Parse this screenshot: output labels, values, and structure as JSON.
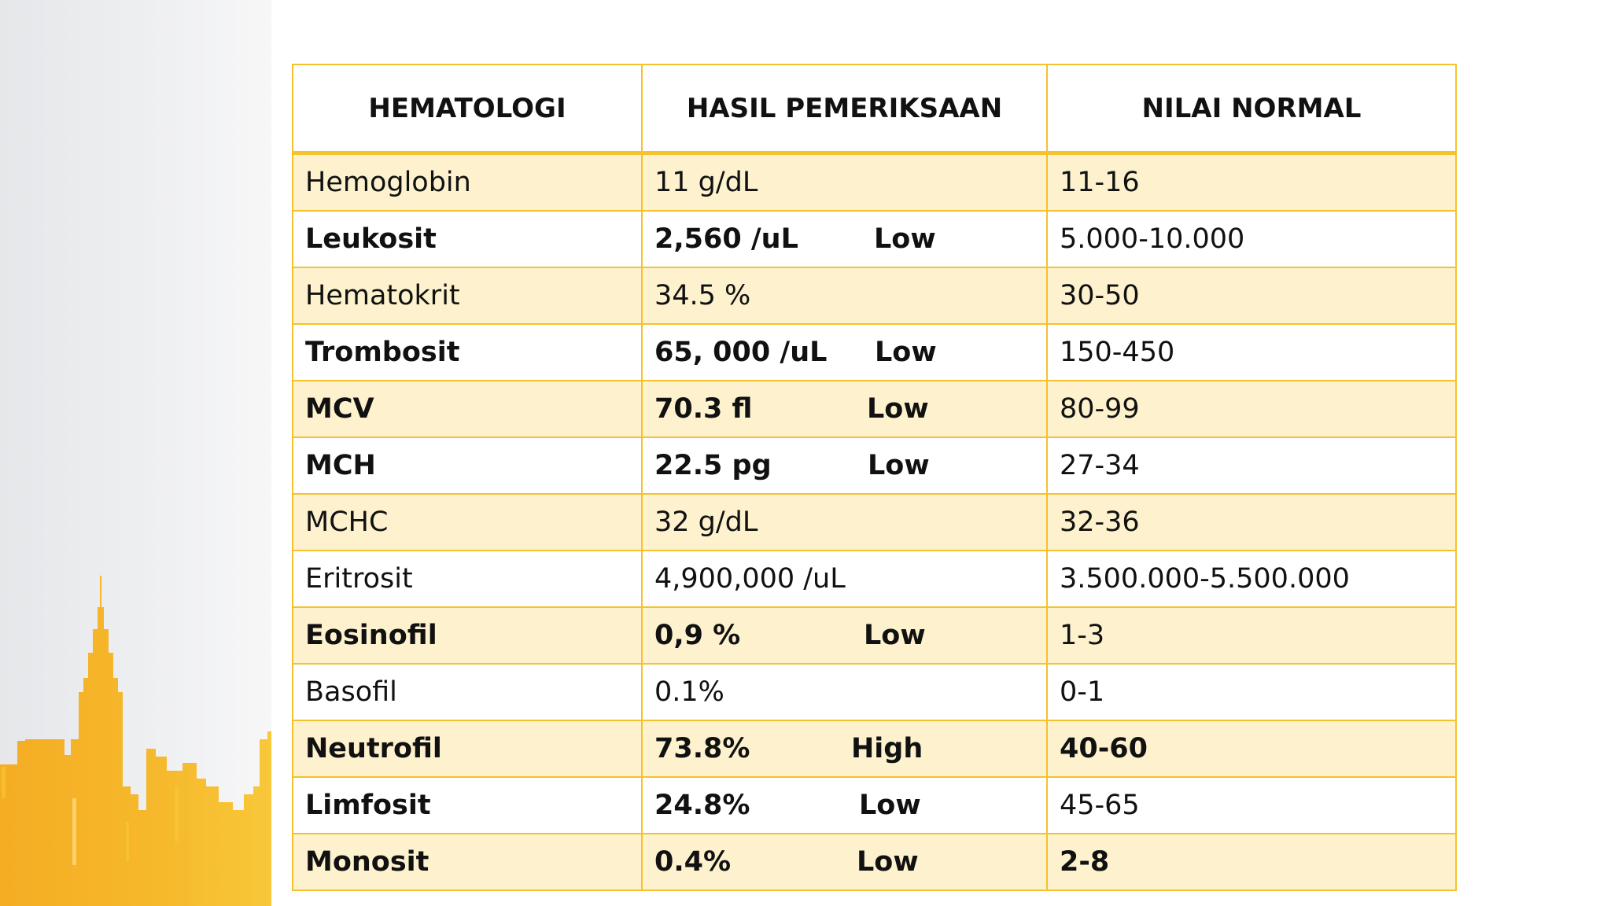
{
  "table": {
    "headers": [
      "HEMATOLOGI",
      "HASIL PEMERIKSAAN",
      "NILAI NORMAL"
    ],
    "rows": [
      {
        "test": "Hemoglobin",
        "result": "11 g/dL",
        "flag": "",
        "normal": "11-16",
        "bold": false,
        "normal_bold": false
      },
      {
        "test": "Leukosit",
        "result": "2,560 /uL",
        "flag": "Low",
        "normal": "5.000-10.000",
        "bold": true,
        "normal_bold": false
      },
      {
        "test": "Hematokrit",
        "result": "34.5 %",
        "flag": "",
        "normal": "30-50",
        "bold": false,
        "normal_bold": false
      },
      {
        "test": "Trombosit",
        "result": "65, 000 /uL",
        "flag": "Low",
        "normal": "150-450",
        "bold": true,
        "normal_bold": false
      },
      {
        "test": "MCV",
        "result": "70.3 fl",
        "flag": "Low",
        "normal": "80-99",
        "bold": true,
        "normal_bold": false
      },
      {
        "test": "MCH",
        "result": "22.5 pg",
        "flag": "Low",
        "normal": "27-34",
        "bold": true,
        "normal_bold": false
      },
      {
        "test": "MCHC",
        "result": "32 g/dL",
        "flag": "",
        "normal": "32-36",
        "bold": false,
        "normal_bold": false
      },
      {
        "test": "Eritrosit",
        "result": "4,900,000 /uL",
        "flag": "",
        "normal": "3.500.000-5.500.000",
        "bold": false,
        "normal_bold": false
      },
      {
        "test": "Eosinofil",
        "result": "0,9 %",
        "flag": "Low",
        "normal": "1-3",
        "bold": true,
        "normal_bold": false
      },
      {
        "test": "Basofil",
        "result": "0.1%",
        "flag": "",
        "normal": "0-1",
        "bold": false,
        "normal_bold": false
      },
      {
        "test": "Neutrofil",
        "result": "73.8%",
        "flag": "High",
        "normal": "40-60",
        "bold": true,
        "normal_bold": true
      },
      {
        "test": "Limfosit",
        "result": "24.8%",
        "flag": "Low",
        "normal": "45-65",
        "bold": true,
        "normal_bold": false
      },
      {
        "test": "Monosit",
        "result": "0.4%",
        "flag": "Low",
        "normal": "2-8",
        "bold": true,
        "normal_bold": true
      }
    ]
  },
  "colors": {
    "border": "#f5c22e",
    "row_shade": "#fdf2cd",
    "skyline": "#f5b52a"
  },
  "icons": {
    "decoration": "city-skyline-silhouette"
  }
}
